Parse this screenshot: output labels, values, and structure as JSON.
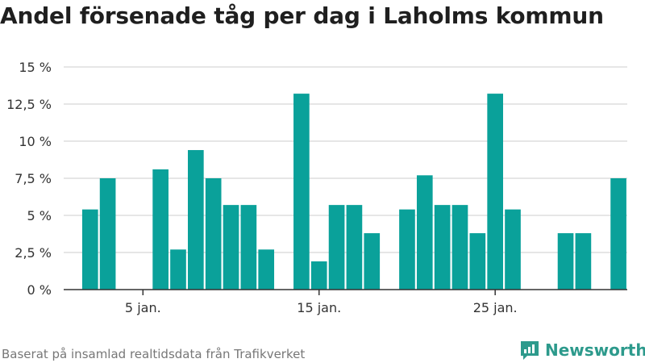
{
  "header": {
    "title": "Andel försenade tåg per dag i Laholms kommun"
  },
  "footer": {
    "source": "Baserat på insamlad realtidsdata från Trafikverket",
    "brand": "Newsworthy"
  },
  "colors": {
    "bar": "#0aa19a",
    "grid": "#dddddd",
    "axis": "#333333",
    "brand": "#2d9a8c"
  },
  "chart_data": {
    "type": "bar",
    "title": "Andel försenade tåg per dag i Laholms kommun",
    "xlabel": "",
    "ylabel": "",
    "x_ticks": [
      {
        "day": 5,
        "label": "5 jan."
      },
      {
        "day": 15,
        "label": "15 jan."
      },
      {
        "day": 25,
        "label": "25 jan."
      }
    ],
    "y_ticks": [
      {
        "value": 0,
        "label": "0 %"
      },
      {
        "value": 2.5,
        "label": "2,5 %"
      },
      {
        "value": 5,
        "label": "5 %"
      },
      {
        "value": 7.5,
        "label": "7,5 %"
      },
      {
        "value": 10,
        "label": "10 %"
      },
      {
        "value": 12.5,
        "label": "12,5 %"
      },
      {
        "value": 15,
        "label": "15 %"
      }
    ],
    "ylim": [
      0,
      15
    ],
    "xlim": [
      1,
      32
    ],
    "grid": true,
    "legend": "none",
    "days": [
      {
        "day": 1,
        "value": 0
      },
      {
        "day": 2,
        "value": 5.4
      },
      {
        "day": 3,
        "value": 7.5
      },
      {
        "day": 4,
        "value": 0
      },
      {
        "day": 5,
        "value": 0
      },
      {
        "day": 6,
        "value": 8.1
      },
      {
        "day": 7,
        "value": 2.7
      },
      {
        "day": 8,
        "value": 9.4
      },
      {
        "day": 9,
        "value": 7.5
      },
      {
        "day": 10,
        "value": 5.7
      },
      {
        "day": 11,
        "value": 5.7
      },
      {
        "day": 12,
        "value": 2.7
      },
      {
        "day": 13,
        "value": 0
      },
      {
        "day": 14,
        "value": 13.2
      },
      {
        "day": 15,
        "value": 1.9
      },
      {
        "day": 16,
        "value": 5.7
      },
      {
        "day": 17,
        "value": 5.7
      },
      {
        "day": 18,
        "value": 3.8
      },
      {
        "day": 19,
        "value": 0
      },
      {
        "day": 20,
        "value": 5.4
      },
      {
        "day": 21,
        "value": 7.7
      },
      {
        "day": 22,
        "value": 5.7
      },
      {
        "day": 23,
        "value": 5.7
      },
      {
        "day": 24,
        "value": 3.8
      },
      {
        "day": 25,
        "value": 13.2
      },
      {
        "day": 26,
        "value": 5.4
      },
      {
        "day": 27,
        "value": 0
      },
      {
        "day": 28,
        "value": 0
      },
      {
        "day": 29,
        "value": 3.8
      },
      {
        "day": 30,
        "value": 3.8
      },
      {
        "day": 31,
        "value": 0
      },
      {
        "day": 32,
        "value": 7.5
      }
    ]
  }
}
